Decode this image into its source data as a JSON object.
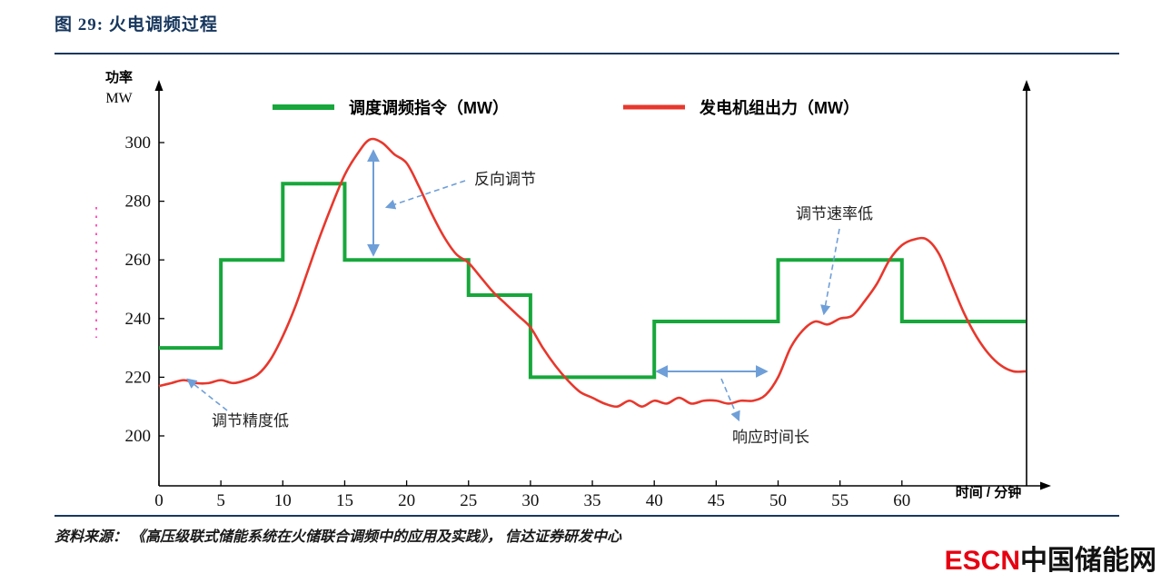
{
  "header": {
    "title": "图 29:  火电调频过程"
  },
  "chart_data": {
    "type": "line",
    "title": "火电调频过程",
    "xlabel": "时间 / 分钟",
    "ylabel": "功率 MW",
    "ylabel_lines": [
      "功率",
      "MW"
    ],
    "xlim": [
      0,
      70
    ],
    "ylim": [
      190,
      310
    ],
    "x_ticks": [
      0,
      5,
      10,
      15,
      20,
      25,
      30,
      35,
      40,
      45,
      50,
      55,
      60
    ],
    "y_ticks": [
      200,
      220,
      240,
      260,
      280,
      300
    ],
    "grid": false,
    "legend_position": "top",
    "colors": {
      "command_green": "#17a73b",
      "output_red": "#e8372c",
      "annotation_blue": "#6f9fd8",
      "accent_navy": "#17375e"
    },
    "series": [
      {
        "name": "调度调频指令（MW）",
        "type": "step",
        "color": "#17a73b",
        "points": [
          [
            0,
            230
          ],
          [
            5,
            230
          ],
          [
            5,
            260
          ],
          [
            10,
            260
          ],
          [
            10,
            286
          ],
          [
            15,
            286
          ],
          [
            15,
            260
          ],
          [
            25,
            260
          ],
          [
            25,
            248
          ],
          [
            30,
            248
          ],
          [
            30,
            220
          ],
          [
            40,
            220
          ],
          [
            40,
            239
          ],
          [
            50,
            239
          ],
          [
            50,
            260
          ],
          [
            60,
            260
          ],
          [
            60,
            239
          ],
          [
            70,
            239
          ]
        ]
      },
      {
        "name": "发电机组出力（MW）",
        "type": "smooth",
        "color": "#e8372c",
        "points": [
          [
            0,
            217
          ],
          [
            1,
            218
          ],
          [
            2,
            219
          ],
          [
            3,
            218
          ],
          [
            4,
            218
          ],
          [
            5,
            219
          ],
          [
            6,
            218
          ],
          [
            7,
            219
          ],
          [
            8,
            221
          ],
          [
            9,
            226
          ],
          [
            10,
            234
          ],
          [
            11,
            244
          ],
          [
            12,
            256
          ],
          [
            13,
            268
          ],
          [
            14,
            279
          ],
          [
            15,
            289
          ],
          [
            16,
            296
          ],
          [
            17,
            301
          ],
          [
            18,
            300
          ],
          [
            19,
            296
          ],
          [
            20,
            293
          ],
          [
            21,
            285
          ],
          [
            22,
            276
          ],
          [
            23,
            268
          ],
          [
            24,
            262
          ],
          [
            25,
            259
          ],
          [
            26,
            254
          ],
          [
            27,
            249
          ],
          [
            28,
            245
          ],
          [
            29,
            241
          ],
          [
            30,
            237
          ],
          [
            31,
            230
          ],
          [
            32,
            224
          ],
          [
            33,
            219
          ],
          [
            34,
            215
          ],
          [
            35,
            213
          ],
          [
            36,
            211
          ],
          [
            37,
            210
          ],
          [
            38,
            212
          ],
          [
            39,
            210
          ],
          [
            40,
            212
          ],
          [
            41,
            211
          ],
          [
            42,
            213
          ],
          [
            43,
            211
          ],
          [
            44,
            212
          ],
          [
            45,
            212
          ],
          [
            46,
            211
          ],
          [
            47,
            212
          ],
          [
            48,
            212
          ],
          [
            49,
            214
          ],
          [
            50,
            220
          ],
          [
            51,
            230
          ],
          [
            52,
            236
          ],
          [
            53,
            239
          ],
          [
            54,
            238
          ],
          [
            55,
            240
          ],
          [
            56,
            241
          ],
          [
            57,
            246
          ],
          [
            58,
            252
          ],
          [
            59,
            260
          ],
          [
            60,
            265
          ],
          [
            61,
            267
          ],
          [
            62,
            267
          ],
          [
            63,
            262
          ],
          [
            64,
            252
          ],
          [
            65,
            242
          ],
          [
            66,
            234
          ],
          [
            67,
            228
          ],
          [
            68,
            224
          ],
          [
            69,
            222
          ],
          [
            70,
            222
          ]
        ]
      }
    ],
    "annotations": [
      {
        "text": "反向调节"
      },
      {
        "text": "调节精度低"
      },
      {
        "text": "响应时间长"
      },
      {
        "text": "调节速率低"
      }
    ]
  },
  "footer": {
    "source": "资料来源：  《高压级联式储能系统在火储联合调频中的应用及实践》，  信达证券研发中心",
    "logo_en": "ESCN",
    "logo_cn": "中国储能网"
  }
}
